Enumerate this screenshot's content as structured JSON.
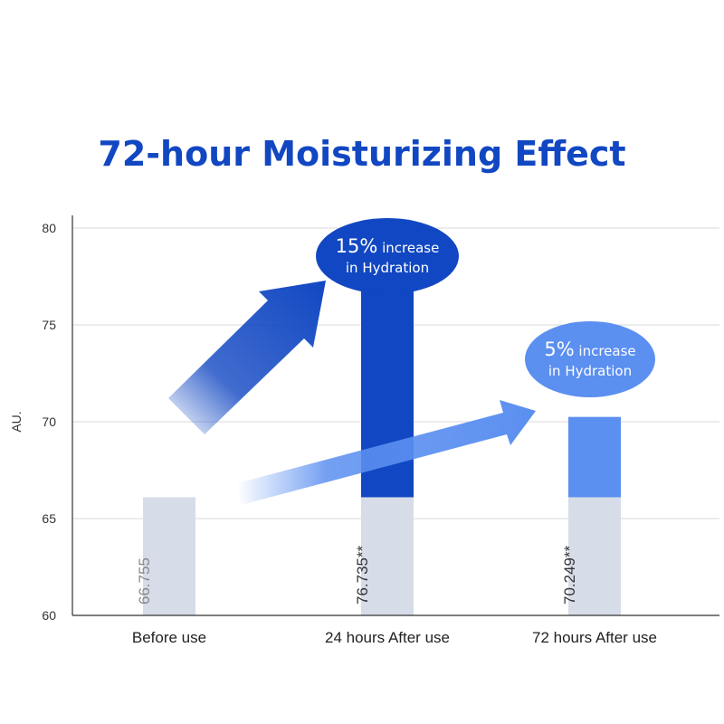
{
  "chart_data": {
    "type": "bar",
    "title": "72-hour Moisturizing Effect",
    "ylabel": "AU.",
    "ylim": [
      60,
      80
    ],
    "yticks": [
      60,
      65,
      70,
      75,
      80
    ],
    "grid": true,
    "categories": [
      "Before use",
      "24 hours After use",
      "72 hours After use"
    ],
    "baseline_value": 66.1,
    "values": [
      66.755,
      76.735,
      70.249
    ],
    "value_labels": [
      "66.755",
      "76.735**",
      "70.249**"
    ],
    "annotations": [
      {
        "percent": "15%",
        "text_a": "increase",
        "text_b": "in Hydration"
      },
      {
        "percent": "5%",
        "text_a": "increase",
        "text_b": "in Hydration"
      }
    ],
    "colors": {
      "baseline_bar": "#d6dde9",
      "increase_24h": "#1147c2",
      "increase_72h": "#5b8ff0",
      "grid": "#d9d9d9",
      "axis": "#333333"
    }
  }
}
